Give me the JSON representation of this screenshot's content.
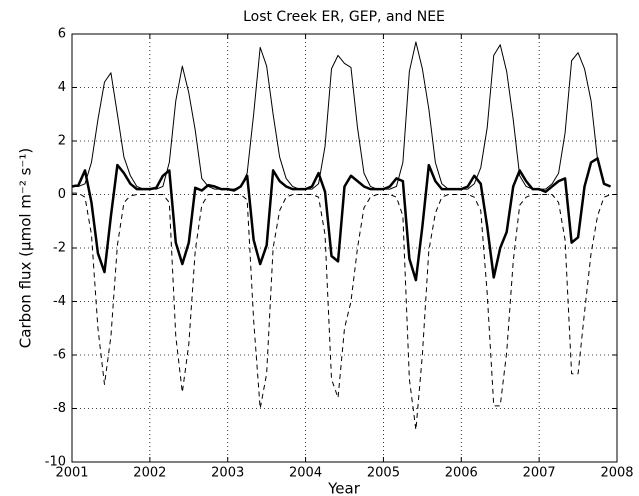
{
  "chart_data": {
    "type": "line",
    "title": "Lost Creek ER, GEP, and NEE",
    "x_label": "Year",
    "y_label": "Carbon flux (μmol m⁻² s⁻¹)",
    "x": [
      2001.0,
      2001.083,
      2001.167,
      2001.25,
      2001.333,
      2001.417,
      2001.5,
      2001.583,
      2001.667,
      2001.75,
      2001.833,
      2001.917,
      2002.0,
      2002.083,
      2002.167,
      2002.25,
      2002.333,
      2002.417,
      2002.5,
      2002.583,
      2002.667,
      2002.75,
      2002.833,
      2002.917,
      2003.0,
      2003.083,
      2003.167,
      2003.25,
      2003.333,
      2003.417,
      2003.5,
      2003.583,
      2003.667,
      2003.75,
      2003.833,
      2003.917,
      2004.0,
      2004.083,
      2004.167,
      2004.25,
      2004.333,
      2004.417,
      2004.5,
      2004.583,
      2004.667,
      2004.75,
      2004.833,
      2004.917,
      2005.0,
      2005.083,
      2005.167,
      2005.25,
      2005.333,
      2005.417,
      2005.5,
      2005.583,
      2005.667,
      2005.75,
      2005.833,
      2005.917,
      2006.0,
      2006.083,
      2006.167,
      2006.25,
      2006.333,
      2006.417,
      2006.5,
      2006.583,
      2006.667,
      2006.75,
      2006.833,
      2006.917,
      2007.0,
      2007.083,
      2007.167,
      2007.25,
      2007.333,
      2007.417,
      2007.5,
      2007.583,
      2007.667,
      2007.75,
      2007.833,
      2007.917
    ],
    "series": [
      {
        "color": "#000000",
        "linewidth": 1,
        "linestyle": "solid",
        "values": [
          0.3,
          0.3,
          0.4,
          1.2,
          2.8,
          4.2,
          4.55,
          3.0,
          1.4,
          0.7,
          0.3,
          0.2,
          0.2,
          0.2,
          0.3,
          1.2,
          3.5,
          4.8,
          3.8,
          2.4,
          0.6,
          0.3,
          0.2,
          0.2,
          0.2,
          0.2,
          0.3,
          0.8,
          3.0,
          5.5,
          4.8,
          3.0,
          1.4,
          0.6,
          0.3,
          0.2,
          0.2,
          0.2,
          0.4,
          1.8,
          4.7,
          5.2,
          4.9,
          4.75,
          2.5,
          0.8,
          0.3,
          0.2,
          0.2,
          0.2,
          0.3,
          1.2,
          4.6,
          5.7,
          4.7,
          3.2,
          1.2,
          0.4,
          0.2,
          0.2,
          0.2,
          0.2,
          0.4,
          1.0,
          2.5,
          5.2,
          5.6,
          4.6,
          2.8,
          0.7,
          0.3,
          0.2,
          0.2,
          0.2,
          0.4,
          0.8,
          2.3,
          5.0,
          5.3,
          4.7,
          3.5,
          1.3,
          0.4,
          0.3
        ]
      },
      {
        "color": "#000000",
        "linewidth": 1,
        "linestyle": "dashed",
        "values": [
          0.05,
          0.05,
          -0.1,
          -1.5,
          -5.0,
          -7.1,
          -5.3,
          -1.9,
          -0.3,
          -0.05,
          0,
          0,
          0,
          0,
          0,
          -0.3,
          -5.3,
          -7.4,
          -5.6,
          -2.1,
          -0.4,
          0,
          0,
          0,
          0,
          0,
          0,
          -0.2,
          -4.7,
          -8.0,
          -6.7,
          -2.0,
          -0.6,
          -0.1,
          0,
          0,
          0,
          0,
          -0.1,
          -1.5,
          -6.9,
          -7.6,
          -5.0,
          -4.0,
          -2.0,
          -0.5,
          -0.1,
          0,
          0,
          0,
          -0.1,
          -0.8,
          -6.9,
          -8.8,
          -6.0,
          -2.1,
          -0.7,
          -0.1,
          0,
          0,
          0,
          0,
          -0.1,
          -0.6,
          -3.7,
          -7.9,
          -7.9,
          -5.9,
          -2.5,
          -0.4,
          -0.1,
          0,
          0,
          0,
          0,
          -0.3,
          -1.7,
          -6.7,
          -6.7,
          -4.4,
          -2.2,
          -0.8,
          -0.1,
          0
        ]
      },
      {
        "color": "#000000",
        "linewidth": 2.5,
        "linestyle": "solid",
        "values": [
          0.3,
          0.35,
          0.9,
          -0.3,
          -2.2,
          -2.9,
          -0.8,
          1.1,
          0.8,
          0.4,
          0.2,
          0.2,
          0.2,
          0.25,
          0.7,
          0.9,
          -1.8,
          -2.6,
          -1.8,
          0.25,
          0.15,
          0.35,
          0.3,
          0.2,
          0.2,
          0.15,
          0.3,
          0.7,
          -1.7,
          -2.6,
          -1.9,
          0.9,
          0.5,
          0.3,
          0.2,
          0.2,
          0.2,
          0.3,
          0.8,
          0.1,
          -2.3,
          -2.5,
          0.3,
          0.7,
          0.5,
          0.3,
          0.2,
          0.2,
          0.2,
          0.3,
          0.6,
          0.5,
          -2.4,
          -3.2,
          -1.2,
          1.1,
          0.5,
          0.2,
          0.2,
          0.2,
          0.2,
          0.3,
          0.7,
          0.4,
          -1.2,
          -3.1,
          -2.0,
          -1.4,
          0.3,
          0.9,
          0.5,
          0.2,
          0.2,
          0.1,
          0.3,
          0.5,
          0.6,
          -1.8,
          -1.6,
          0.3,
          1.2,
          1.35,
          0.4,
          0.3
        ]
      }
    ],
    "xlim": [
      2001,
      2008
    ],
    "xticks": [
      2001,
      2002,
      2003,
      2004,
      2005,
      2006,
      2007,
      2008
    ],
    "ylim": [
      -10,
      6
    ],
    "yticks": [
      -10,
      -8,
      -6,
      -4,
      -2,
      0,
      2,
      4,
      6
    ],
    "grid": true
  }
}
